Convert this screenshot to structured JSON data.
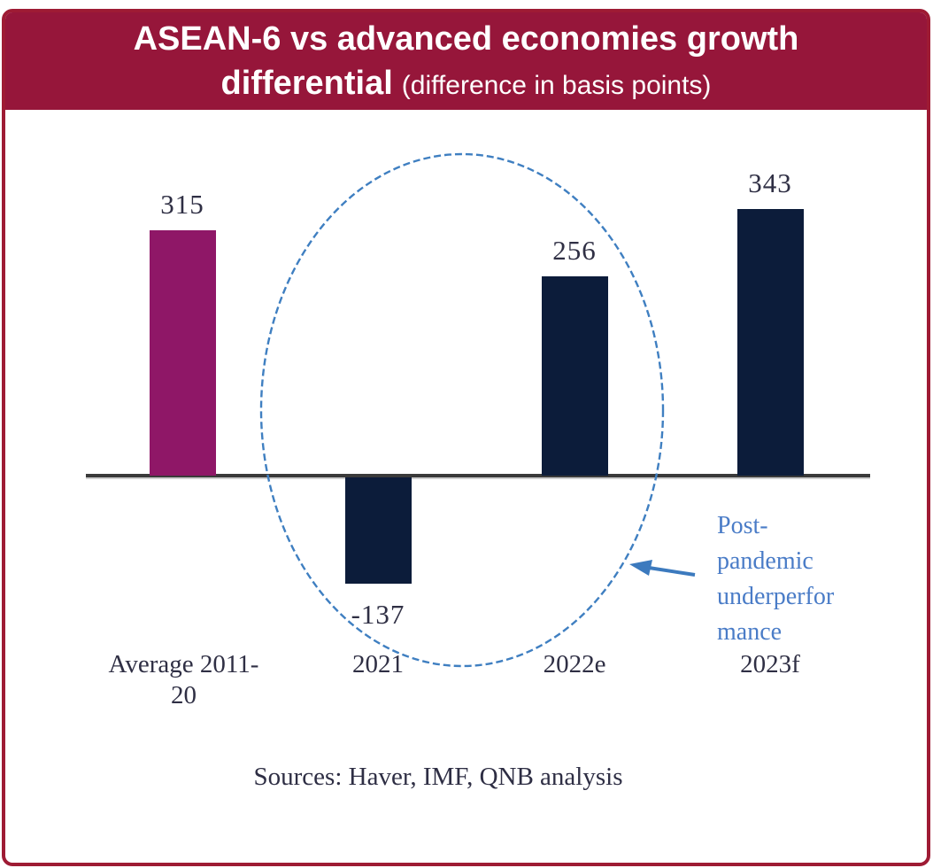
{
  "header": {
    "title_line1": "ASEAN-6 vs advanced economies growth",
    "title_line2_bold": "differential",
    "subtitle": "(difference in basis points)"
  },
  "colors": {
    "header_bg": "#96163a",
    "frame_border": "#9e1b34",
    "magenta_bar": "#8f1767",
    "navy_bar": "#0c1c3a",
    "axis": "#3a3a3a",
    "ellipse_blue": "#3f7fc1",
    "annotation_blue": "#4a7cc7",
    "label_text": "#2f2f44"
  },
  "chart_data": {
    "type": "bar",
    "title": "ASEAN-6 vs advanced economies growth differential",
    "subtitle": "(difference in basis points)",
    "xlabel": "",
    "ylabel": "",
    "categories": [
      "Average 2011-20",
      "2021",
      "2022e",
      "2023f"
    ],
    "values": [
      315,
      -137,
      256,
      343
    ],
    "bar_colors": [
      "#8f1767",
      "#0c1c3a",
      "#0c1c3a",
      "#0c1c3a"
    ],
    "ylim": [
      -200,
      400
    ],
    "grid": false,
    "legend": "none",
    "baseline": 0,
    "annotation": "Post-\npandemic\nunderperfor\nmance",
    "annotation_target": "ellipse around 2021 and 2022e bars",
    "sources": "Sources: Haver, IMF, QNB analysis"
  }
}
